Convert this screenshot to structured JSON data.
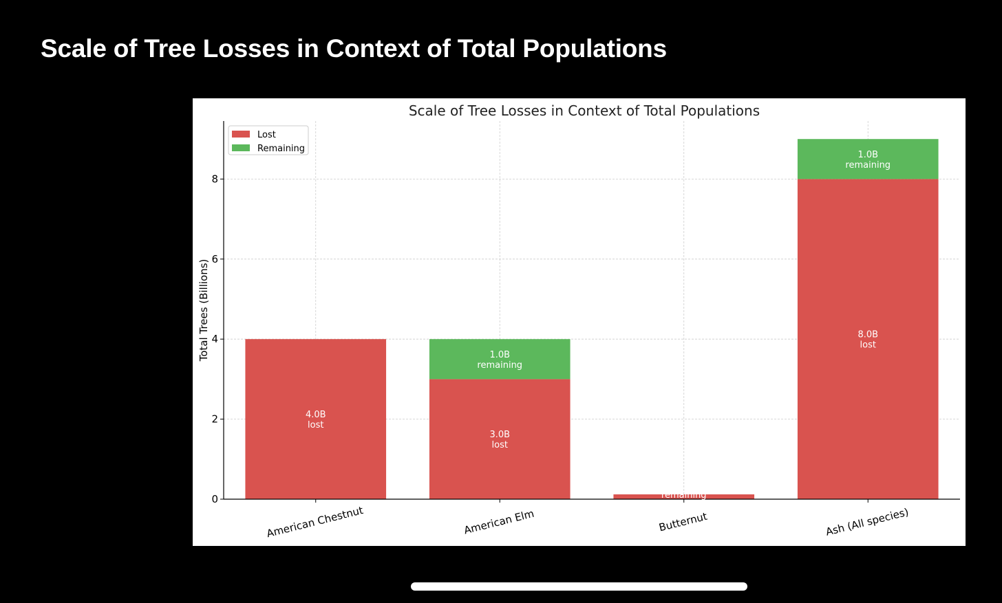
{
  "page": {
    "title": "Scale of Tree Losses in Context of Total Populations"
  },
  "colors": {
    "lost": "#d9534f",
    "remaining": "#5cb85c",
    "grid": "#cccccc",
    "axis": "#000000",
    "bar_label": "#ffffff"
  },
  "chart_data": {
    "type": "bar",
    "stacked": true,
    "title": "Scale of Tree Losses in Context of Total Populations",
    "xlabel": "",
    "ylabel": "Total Trees (Billions)",
    "ylim": [
      0,
      9.45
    ],
    "yticks": [
      0,
      2,
      4,
      6,
      8
    ],
    "grid": true,
    "legend_position": "top-left",
    "categories": [
      "American Chestnut",
      "American Elm",
      "Butternut",
      "Ash (All species)"
    ],
    "series": [
      {
        "name": "Lost",
        "values": [
          4.0,
          3.0,
          0.12,
          8.0
        ]
      },
      {
        "name": "Remaining",
        "values": [
          0.0,
          1.0,
          0.0,
          1.0
        ]
      }
    ],
    "annotations": [
      {
        "category": "American Chestnut",
        "series": "Lost",
        "lines": [
          "4.0B",
          "lost"
        ]
      },
      {
        "category": "American Elm",
        "series": "Remaining",
        "lines": [
          "1.0B",
          "remaining"
        ]
      },
      {
        "category": "American Elm",
        "series": "Lost",
        "lines": [
          "3.0B",
          "lost"
        ]
      },
      {
        "category": "Butternut",
        "series": "Remaining",
        "lines": [
          "remaining"
        ]
      },
      {
        "category": "Ash (All species)",
        "series": "Remaining",
        "lines": [
          "1.0B",
          "remaining"
        ]
      },
      {
        "category": "Ash (All species)",
        "series": "Lost",
        "lines": [
          "8.0B",
          "lost"
        ]
      }
    ]
  }
}
